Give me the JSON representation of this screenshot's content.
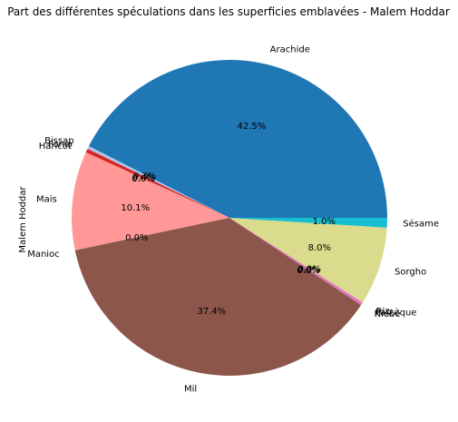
{
  "chart_data": {
    "type": "pie",
    "title": "Part des différentes spéculations dans les superficies emblavées - Malem Hoddar",
    "ylabel": "Malem Hoddar",
    "start_angle_deg": 0,
    "direction": "counterclockwise",
    "slices": [
      {
        "label": "Arachide",
        "value": 42.5,
        "pct_text": "42.5%",
        "color": "#1f77b4"
      },
      {
        "label": "Bissap",
        "value": 0.3,
        "pct_text": "0.3%",
        "color": "#aec7e8"
      },
      {
        "label": "Fonio",
        "value": 0.4,
        "pct_text": "0.4%",
        "color": "#d62728"
      },
      {
        "label": "Haricot",
        "value": 0.0,
        "pct_text": "0.0%",
        "color": "#ff7f0e"
      },
      {
        "label": "Mais",
        "value": 10.1,
        "pct_text": "10.1%",
        "color": "#ff9896"
      },
      {
        "label": "Manioc",
        "value": 0.0,
        "pct_text": "0.0%",
        "color": "#9467bd"
      },
      {
        "label": "Mil",
        "value": 37.4,
        "pct_text": "37.4%",
        "color": "#8c564b"
      },
      {
        "label": "Niébé",
        "value": 0.0,
        "pct_text": "0.0%",
        "color": "#c49c94"
      },
      {
        "label": "Pastèque",
        "value": 0.3,
        "pct_text": "0.3%",
        "color": "#e377c2"
      },
      {
        "label": "Riz",
        "value": 0.0,
        "pct_text": "0.0%",
        "color": "#7f7f7f"
      },
      {
        "label": "Sorgho",
        "value": 8.0,
        "pct_text": "8.0%",
        "color": "#dbdb8d"
      },
      {
        "label": "Sésame",
        "value": 1.0,
        "pct_text": "1.0%",
        "color": "#17becf"
      }
    ]
  }
}
